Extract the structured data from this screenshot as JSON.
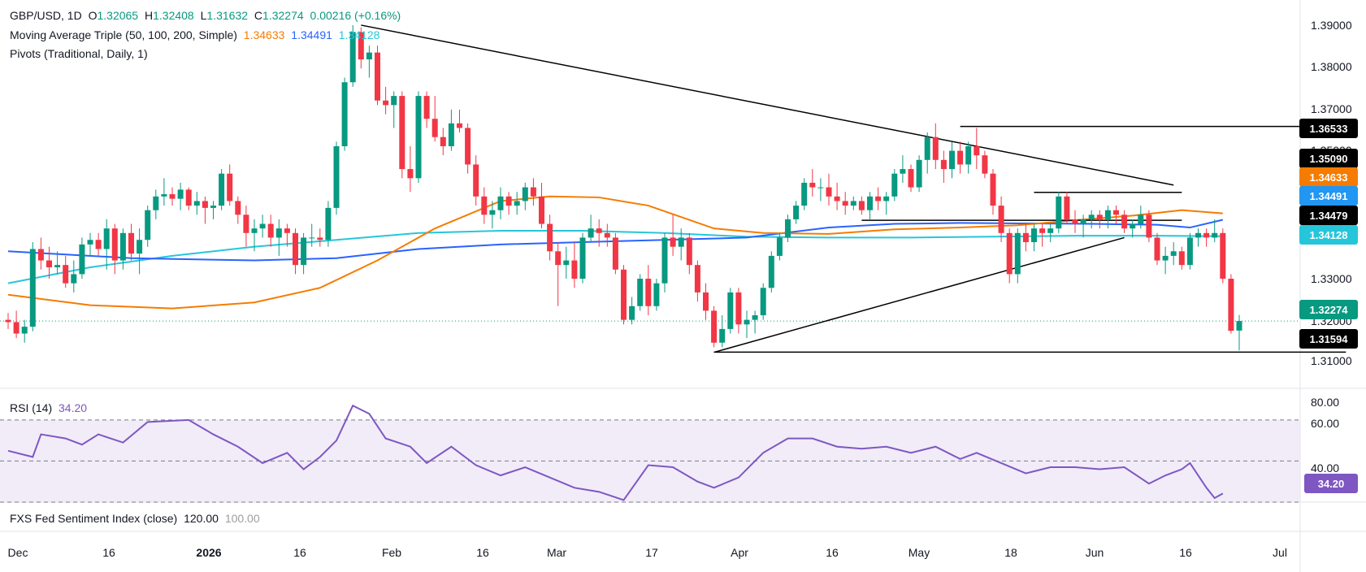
{
  "header": {
    "symbol": "GBP/USD, 1D",
    "ohlc": {
      "o_label": "O",
      "o": "1.32065",
      "h_label": "H",
      "h": "1.32408",
      "l_label": "L",
      "l": "1.31632",
      "c_label": "C",
      "c": "1.32274",
      "change": "0.00216 (+0.16%)"
    },
    "ma_label": "Moving Average Triple (50, 100, 200, Simple)",
    "ma_values": [
      "1.34633",
      "1.34491",
      "1.34128"
    ],
    "pivots_label": "Pivots (Traditional, Daily, 1)"
  },
  "rsi": {
    "label": "RSI (14)",
    "value": "34.20"
  },
  "fxs": {
    "label": "FXS Fed Sentiment Index (close)",
    "value1": "120.00",
    "value2": "100.00"
  },
  "colors": {
    "up": "#089981",
    "down": "#f23645",
    "ma50": "#f57c00",
    "ma100": "#2962ff",
    "ma200": "#26c6da",
    "rsi": "#7e57c2",
    "rsi_band": "#ede7f6"
  },
  "price_tags": [
    {
      "text": "1.36533",
      "price": 1.36533,
      "bg": "#000000"
    },
    {
      "text": "1.35090",
      "price": 1.3509,
      "bg": "#000000"
    },
    {
      "text": "1.34633",
      "price": 1.34633,
      "bg": "#f57c00"
    },
    {
      "text": "1.34491",
      "price": 1.34491,
      "bg": "#2196f3"
    },
    {
      "text": "1.34479",
      "price": 1.34479,
      "bg": "#000000"
    },
    {
      "text": "1.34128",
      "price": 1.34128,
      "bg": "#26c6da"
    },
    {
      "text": "1.32274",
      "price": 1.32274,
      "bg": "#089981"
    },
    {
      "text": "1.31594",
      "price": 1.31594,
      "bg": "#000000"
    }
  ],
  "price_axis": [
    "1.39000",
    "1.38000",
    "1.37000",
    "1.35000",
    "1.33000",
    "1.32000",
    "1.31000"
  ],
  "rsi_axis": [
    "80.00",
    "60.00",
    "40.00"
  ],
  "x_axis": [
    {
      "text": "Dec",
      "bold": false
    },
    {
      "text": "16",
      "bold": false
    },
    {
      "text": "2026",
      "bold": true
    },
    {
      "text": "16",
      "bold": false
    },
    {
      "text": "Feb",
      "bold": false
    },
    {
      "text": "16",
      "bold": false
    },
    {
      "text": "Mar",
      "bold": false
    },
    {
      "text": "17",
      "bold": false
    },
    {
      "text": "Apr",
      "bold": false
    },
    {
      "text": "16",
      "bold": false
    },
    {
      "text": "May",
      "bold": false
    },
    {
      "text": "18",
      "bold": false
    },
    {
      "text": "Jun",
      "bold": false
    },
    {
      "text": "16",
      "bold": false
    },
    {
      "text": "Jul",
      "bold": false
    }
  ],
  "chart_data": {
    "type": "candlestick",
    "title": "GBP/USD, 1D",
    "ylim": [
      1.308,
      1.393
    ],
    "rsi_ylim": [
      30,
      83
    ],
    "rsi_levels": [
      70,
      50,
      30
    ],
    "candles": [
      [
        1.323,
        1.3245,
        1.321,
        1.3225
      ],
      [
        1.3225,
        1.325,
        1.319,
        1.32
      ],
      [
        1.32,
        1.323,
        1.318,
        1.3215
      ],
      [
        1.3215,
        1.34,
        1.3205,
        1.3385
      ],
      [
        1.3385,
        1.341,
        1.334,
        1.336
      ],
      [
        1.336,
        1.339,
        1.332,
        1.3345
      ],
      [
        1.3345,
        1.338,
        1.333,
        1.335
      ],
      [
        1.335,
        1.337,
        1.33,
        1.331
      ],
      [
        1.331,
        1.336,
        1.329,
        1.333
      ],
      [
        1.333,
        1.341,
        1.332,
        1.3395
      ],
      [
        1.3395,
        1.342,
        1.337,
        1.3405
      ],
      [
        1.3405,
        1.342,
        1.337,
        1.3385
      ],
      [
        1.3385,
        1.345,
        1.334,
        1.343
      ],
      [
        1.343,
        1.344,
        1.333,
        1.336
      ],
      [
        1.336,
        1.343,
        1.334,
        1.342
      ],
      [
        1.342,
        1.344,
        1.336,
        1.3375
      ],
      [
        1.3375,
        1.343,
        1.333,
        1.3405
      ],
      [
        1.3405,
        1.348,
        1.339,
        1.347
      ],
      [
        1.347,
        1.3515,
        1.345,
        1.35
      ],
      [
        1.35,
        1.354,
        1.348,
        1.3505
      ],
      [
        1.3505,
        1.352,
        1.348,
        1.3495
      ],
      [
        1.3495,
        1.353,
        1.347,
        1.3515
      ],
      [
        1.3515,
        1.352,
        1.347,
        1.348
      ],
      [
        1.348,
        1.351,
        1.346,
        1.349
      ],
      [
        1.349,
        1.35,
        1.344,
        1.3475
      ],
      [
        1.3475,
        1.349,
        1.345,
        1.348
      ],
      [
        1.348,
        1.356,
        1.347,
        1.355
      ],
      [
        1.355,
        1.357,
        1.348,
        1.349
      ],
      [
        1.349,
        1.35,
        1.344,
        1.346
      ],
      [
        1.346,
        1.348,
        1.339,
        1.342
      ],
      [
        1.342,
        1.345,
        1.338,
        1.343
      ],
      [
        1.343,
        1.346,
        1.341,
        1.344
      ],
      [
        1.344,
        1.346,
        1.339,
        1.341
      ],
      [
        1.341,
        1.345,
        1.337,
        1.343
      ],
      [
        1.343,
        1.344,
        1.339,
        1.342
      ],
      [
        1.342,
        1.343,
        1.333,
        1.335
      ],
      [
        1.335,
        1.342,
        1.333,
        1.341
      ],
      [
        1.341,
        1.344,
        1.339,
        1.341
      ],
      [
        1.341,
        1.343,
        1.339,
        1.3405
      ],
      [
        1.3405,
        1.349,
        1.339,
        1.3475
      ],
      [
        1.3475,
        1.362,
        1.346,
        1.361
      ],
      [
        1.361,
        1.376,
        1.36,
        1.375
      ],
      [
        1.375,
        1.3875,
        1.374,
        1.386
      ],
      [
        1.386,
        1.387,
        1.378,
        1.38
      ],
      [
        1.38,
        1.383,
        1.376,
        1.3815
      ],
      [
        1.3815,
        1.383,
        1.37,
        1.371
      ],
      [
        1.371,
        1.374,
        1.368,
        1.37
      ],
      [
        1.37,
        1.373,
        1.365,
        1.372
      ],
      [
        1.372,
        1.373,
        1.354,
        1.356
      ],
      [
        1.356,
        1.361,
        1.351,
        1.354
      ],
      [
        1.354,
        1.373,
        1.353,
        1.372
      ],
      [
        1.372,
        1.373,
        1.365,
        1.367
      ],
      [
        1.367,
        1.372,
        1.362,
        1.363
      ],
      [
        1.363,
        1.365,
        1.359,
        1.361
      ],
      [
        1.361,
        1.369,
        1.36,
        1.366
      ],
      [
        1.366,
        1.369,
        1.364,
        1.365
      ],
      [
        1.365,
        1.366,
        1.355,
        1.357
      ],
      [
        1.357,
        1.359,
        1.348,
        1.35
      ],
      [
        1.35,
        1.352,
        1.344,
        1.346
      ],
      [
        1.346,
        1.349,
        1.343,
        1.347
      ],
      [
        1.347,
        1.352,
        1.345,
        1.35
      ],
      [
        1.35,
        1.351,
        1.346,
        1.348
      ],
      [
        1.348,
        1.351,
        1.346,
        1.349
      ],
      [
        1.349,
        1.353,
        1.347,
        1.352
      ],
      [
        1.352,
        1.354,
        1.348,
        1.35
      ],
      [
        1.35,
        1.353,
        1.343,
        1.344
      ],
      [
        1.344,
        1.346,
        1.336,
        1.338
      ],
      [
        1.338,
        1.34,
        1.326,
        1.335
      ],
      [
        1.335,
        1.339,
        1.332,
        1.336
      ],
      [
        1.336,
        1.34,
        1.33,
        1.332
      ],
      [
        1.332,
        1.342,
        1.331,
        1.341
      ],
      [
        1.341,
        1.346,
        1.34,
        1.343
      ],
      [
        1.343,
        1.345,
        1.339,
        1.342
      ],
      [
        1.342,
        1.344,
        1.339,
        1.341
      ],
      [
        1.341,
        1.342,
        1.333,
        1.334
      ],
      [
        1.334,
        1.335,
        1.322,
        1.323
      ],
      [
        1.323,
        1.328,
        1.322,
        1.326
      ],
      [
        1.326,
        1.333,
        1.325,
        1.332
      ],
      [
        1.332,
        1.335,
        1.324,
        1.326
      ],
      [
        1.326,
        1.332,
        1.325,
        1.331
      ],
      [
        1.331,
        1.342,
        1.329,
        1.341
      ],
      [
        1.341,
        1.346,
        1.337,
        1.339
      ],
      [
        1.339,
        1.343,
        1.336,
        1.341
      ],
      [
        1.341,
        1.342,
        1.333,
        1.335
      ],
      [
        1.335,
        1.336,
        1.327,
        1.329
      ],
      [
        1.329,
        1.331,
        1.323,
        1.325
      ],
      [
        1.325,
        1.326,
        1.317,
        1.318
      ],
      [
        1.318,
        1.324,
        1.317,
        1.321
      ],
      [
        1.321,
        1.33,
        1.32,
        1.329
      ],
      [
        1.329,
        1.33,
        1.32,
        1.322
      ],
      [
        1.322,
        1.325,
        1.319,
        1.323
      ],
      [
        1.323,
        1.325,
        1.32,
        1.324
      ],
      [
        1.324,
        1.331,
        1.323,
        1.33
      ],
      [
        1.33,
        1.338,
        1.329,
        1.337
      ],
      [
        1.337,
        1.342,
        1.336,
        1.341
      ],
      [
        1.341,
        1.346,
        1.34,
        1.345
      ],
      [
        1.345,
        1.349,
        1.344,
        1.348
      ],
      [
        1.348,
        1.354,
        1.347,
        1.353
      ],
      [
        1.353,
        1.356,
        1.35,
        1.352
      ],
      [
        1.352,
        1.354,
        1.349,
        1.352
      ],
      [
        1.352,
        1.355,
        1.348,
        1.35
      ],
      [
        1.35,
        1.353,
        1.347,
        1.349
      ],
      [
        1.349,
        1.351,
        1.346,
        1.348
      ],
      [
        1.348,
        1.35,
        1.347,
        1.349
      ],
      [
        1.349,
        1.35,
        1.346,
        1.347
      ],
      [
        1.347,
        1.351,
        1.345,
        1.35
      ],
      [
        1.35,
        1.352,
        1.347,
        1.349
      ],
      [
        1.349,
        1.351,
        1.346,
        1.35
      ],
      [
        1.35,
        1.356,
        1.349,
        1.355
      ],
      [
        1.355,
        1.359,
        1.353,
        1.356
      ],
      [
        1.356,
        1.357,
        1.351,
        1.352
      ],
      [
        1.352,
        1.359,
        1.351,
        1.358
      ],
      [
        1.358,
        1.364,
        1.355,
        1.363
      ],
      [
        1.363,
        1.366,
        1.356,
        1.358
      ],
      [
        1.358,
        1.36,
        1.353,
        1.356
      ],
      [
        1.356,
        1.362,
        1.354,
        1.36
      ],
      [
        1.36,
        1.362,
        1.355,
        1.357
      ],
      [
        1.357,
        1.362,
        1.355,
        1.361
      ],
      [
        1.361,
        1.365,
        1.356,
        1.359
      ],
      [
        1.359,
        1.36,
        1.354,
        1.355
      ],
      [
        1.355,
        1.356,
        1.346,
        1.348
      ],
      [
        1.348,
        1.35,
        1.34,
        1.342
      ],
      [
        1.342,
        1.343,
        1.331,
        1.333
      ],
      [
        1.333,
        1.343,
        1.331,
        1.342
      ],
      [
        1.342,
        1.344,
        1.338,
        1.34
      ],
      [
        1.34,
        1.344,
        1.338,
        1.343
      ],
      [
        1.343,
        1.344,
        1.339,
        1.342
      ],
      [
        1.342,
        1.344,
        1.34,
        1.343
      ],
      [
        1.343,
        1.351,
        1.342,
        1.35
      ],
      [
        1.35,
        1.351,
        1.344,
        1.345
      ],
      [
        1.345,
        1.347,
        1.342,
        1.344
      ],
      [
        1.344,
        1.346,
        1.341,
        1.345
      ],
      [
        1.345,
        1.347,
        1.343,
        1.346
      ],
      [
        1.346,
        1.347,
        1.343,
        1.345
      ],
      [
        1.345,
        1.348,
        1.343,
        1.347
      ],
      [
        1.347,
        1.348,
        1.344,
        1.346
      ],
      [
        1.346,
        1.347,
        1.342,
        1.343
      ],
      [
        1.343,
        1.345,
        1.341,
        1.344
      ],
      [
        1.344,
        1.348,
        1.343,
        1.346
      ],
      [
        1.346,
        1.347,
        1.34,
        1.341
      ],
      [
        1.341,
        1.342,
        1.335,
        1.336
      ],
      [
        1.336,
        1.339,
        1.333,
        1.337
      ],
      [
        1.337,
        1.34,
        1.335,
        1.338
      ],
      [
        1.338,
        1.339,
        1.334,
        1.335
      ],
      [
        1.335,
        1.342,
        1.334,
        1.341
      ],
      [
        1.341,
        1.343,
        1.339,
        1.342
      ],
      [
        1.342,
        1.343,
        1.339,
        1.341
      ],
      [
        1.341,
        1.345,
        1.34,
        1.342
      ],
      [
        1.342,
        1.343,
        1.331,
        1.332
      ],
      [
        1.332,
        1.333,
        1.32,
        1.3206
      ],
      [
        1.32065,
        1.32408,
        1.31632,
        1.32274
      ]
    ],
    "ma50": [
      [
        0,
        1.3285
      ],
      [
        10,
        1.3262
      ],
      [
        20,
        1.3255
      ],
      [
        30,
        1.3268
      ],
      [
        38,
        1.33
      ],
      [
        45,
        1.336
      ],
      [
        52,
        1.343
      ],
      [
        60,
        1.349
      ],
      [
        66,
        1.35
      ],
      [
        72,
        1.3498
      ],
      [
        78,
        1.348
      ],
      [
        86,
        1.343
      ],
      [
        92,
        1.342
      ],
      [
        100,
        1.3418
      ],
      [
        108,
        1.3428
      ],
      [
        116,
        1.3432
      ],
      [
        123,
        1.3437
      ],
      [
        130,
        1.3448
      ],
      [
        137,
        1.3458
      ],
      [
        143,
        1.347
      ],
      [
        148,
        1.3463
      ]
    ],
    "ma100": [
      [
        0,
        1.338
      ],
      [
        15,
        1.3365
      ],
      [
        30,
        1.336
      ],
      [
        40,
        1.3365
      ],
      [
        50,
        1.3385
      ],
      [
        60,
        1.3395
      ],
      [
        70,
        1.34
      ],
      [
        80,
        1.3405
      ],
      [
        90,
        1.341
      ],
      [
        100,
        1.3432
      ],
      [
        108,
        1.344
      ],
      [
        116,
        1.3442
      ],
      [
        124,
        1.3441
      ],
      [
        132,
        1.344
      ],
      [
        140,
        1.3438
      ],
      [
        144,
        1.3432
      ],
      [
        148,
        1.3449
      ]
    ],
    "ma200": [
      [
        0,
        1.331
      ],
      [
        10,
        1.3345
      ],
      [
        20,
        1.337
      ],
      [
        30,
        1.339
      ],
      [
        40,
        1.3405
      ],
      [
        50,
        1.342
      ],
      [
        60,
        1.3425
      ],
      [
        70,
        1.3425
      ],
      [
        80,
        1.342
      ],
      [
        90,
        1.3412
      ],
      [
        100,
        1.341
      ],
      [
        110,
        1.341
      ],
      [
        120,
        1.3412
      ],
      [
        130,
        1.3414
      ],
      [
        140,
        1.3414
      ],
      [
        148,
        1.3413
      ]
    ],
    "trendlines": [
      {
        "p1": [
          43,
          1.3875
        ],
        "p2": [
          142,
          1.3525
        ]
      },
      {
        "p1": [
          86,
          1.3159
        ],
        "p2": [
          136,
          1.341
        ]
      }
    ],
    "levels": [
      {
        "from": 116,
        "to": 163,
        "price": 1.36533
      },
      {
        "from": 125,
        "to": 143,
        "price": 1.3509
      },
      {
        "from": 104,
        "to": 143,
        "price": 1.34479
      },
      {
        "from": 86,
        "to": 163,
        "price": 1.31594
      }
    ],
    "rsi": [
      [
        0,
        55
      ],
      [
        3,
        52
      ],
      [
        4,
        63
      ],
      [
        7,
        61
      ],
      [
        9,
        58
      ],
      [
        11,
        63
      ],
      [
        14,
        59
      ],
      [
        17,
        69
      ],
      [
        22,
        70
      ],
      [
        25,
        63
      ],
      [
        28,
        57
      ],
      [
        31,
        49
      ],
      [
        34,
        54
      ],
      [
        36,
        46
      ],
      [
        38,
        52
      ],
      [
        40,
        60
      ],
      [
        42,
        77
      ],
      [
        44,
        73
      ],
      [
        46,
        61
      ],
      [
        49,
        57
      ],
      [
        51,
        49
      ],
      [
        54,
        57
      ],
      [
        57,
        48
      ],
      [
        60,
        43
      ],
      [
        63,
        47
      ],
      [
        66,
        42
      ],
      [
        69,
        37
      ],
      [
        72,
        35
      ],
      [
        75,
        31
      ],
      [
        78,
        48
      ],
      [
        81,
        47
      ],
      [
        84,
        40
      ],
      [
        86,
        37
      ],
      [
        89,
        42
      ],
      [
        92,
        54
      ],
      [
        95,
        61
      ],
      [
        98,
        61
      ],
      [
        101,
        57
      ],
      [
        104,
        56
      ],
      [
        107,
        57
      ],
      [
        110,
        54
      ],
      [
        113,
        57
      ],
      [
        116,
        51
      ],
      [
        118,
        54
      ],
      [
        121,
        49
      ],
      [
        124,
        44
      ],
      [
        127,
        47
      ],
      [
        130,
        47
      ],
      [
        133,
        46
      ],
      [
        136,
        47
      ],
      [
        139,
        39
      ],
      [
        141,
        43
      ],
      [
        143,
        46
      ],
      [
        144,
        49
      ],
      [
        146,
        37
      ],
      [
        147,
        32
      ],
      [
        148,
        34.2
      ]
    ]
  }
}
